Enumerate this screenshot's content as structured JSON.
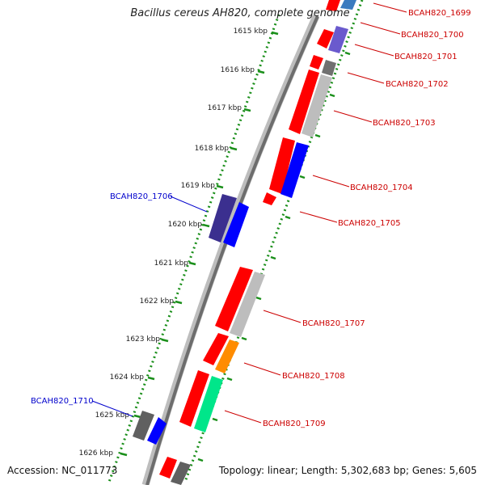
{
  "title": "Bacillus cereus AH820, complete genome",
  "footer": {
    "accession": "Accession: NC_011773",
    "summary": "Topology: linear; Length: 5,302,683 bp; Genes: 5,605"
  },
  "colors": {
    "forward_label": "#cc0000",
    "reverse_label": "#0000cc",
    "ruler_dots": "#1a8f1a",
    "backbone": "#777777"
  },
  "ruler": {
    "unit": "kbp",
    "ticks": [
      "1615 kbp",
      "1616 kbp",
      "1617 kbp",
      "1618 kbp",
      "1619 kbp",
      "1620 kbp",
      "1621 kbp",
      "1622 kbp",
      "1623 kbp",
      "1624 kbp",
      "1625 kbp",
      "1626 kbp"
    ]
  },
  "gene_labels": [
    {
      "text": "BCAH820_1699",
      "strand": "forward"
    },
    {
      "text": "BCAH820_1700",
      "strand": "forward"
    },
    {
      "text": "BCAH820_1701",
      "strand": "forward"
    },
    {
      "text": "BCAH820_1702",
      "strand": "forward"
    },
    {
      "text": "BCAH820_1703",
      "strand": "forward"
    },
    {
      "text": "BCAH820_1704",
      "strand": "forward"
    },
    {
      "text": "BCAH820_1705",
      "strand": "forward"
    },
    {
      "text": "BCAH820_1706",
      "strand": "reverse"
    },
    {
      "text": "BCAH820_1707",
      "strand": "forward"
    },
    {
      "text": "BCAH820_1708",
      "strand": "forward"
    },
    {
      "text": "BCAH820_1709",
      "strand": "forward"
    },
    {
      "text": "BCAH820_1710",
      "strand": "reverse"
    }
  ]
}
